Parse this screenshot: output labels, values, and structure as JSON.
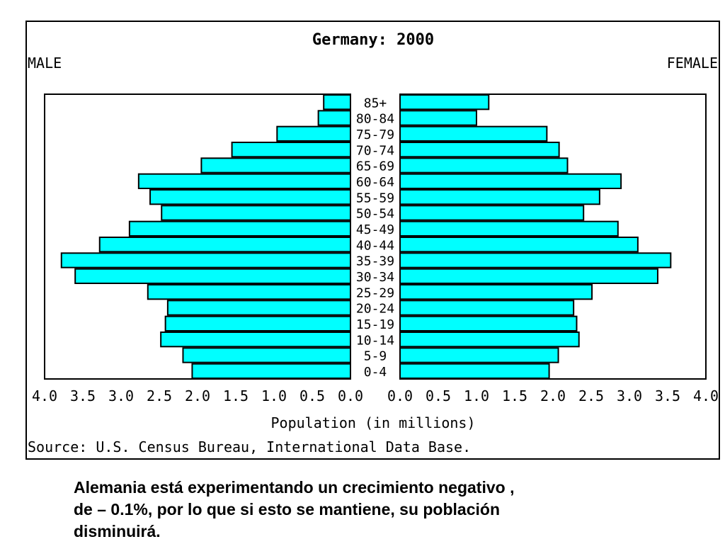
{
  "chart_data": {
    "type": "bar",
    "title": "Germany: 2000",
    "left_label": "MALE",
    "right_label": "FEMALE",
    "xlabel": "Population (in millions)",
    "source": "Source: U.S. Census Bureau, International Data Base.",
    "xlim": [
      0,
      4
    ],
    "x_ticks": [
      "0.0",
      "0.5",
      "1.0",
      "1.5",
      "2.0",
      "2.5",
      "3.0",
      "3.5",
      "4.0"
    ],
    "categories": [
      "85+",
      "80-84",
      "75-79",
      "70-74",
      "65-69",
      "60-64",
      "55-59",
      "50-54",
      "45-49",
      "40-44",
      "35-39",
      "30-34",
      "25-29",
      "20-24",
      "15-19",
      "10-14",
      "5-9",
      "0-4"
    ],
    "series": [
      {
        "name": "MALE",
        "values": [
          0.35,
          0.42,
          0.96,
          1.55,
          1.95,
          2.77,
          2.62,
          2.47,
          2.89,
          3.28,
          3.78,
          3.6,
          2.65,
          2.39,
          2.42,
          2.48,
          2.19,
          2.07
        ]
      },
      {
        "name": "FEMALE",
        "values": [
          1.16,
          1.0,
          1.92,
          2.08,
          2.19,
          2.89,
          2.61,
          2.4,
          2.85,
          3.11,
          3.54,
          3.37,
          2.51,
          2.27,
          2.31,
          2.34,
          2.07,
          1.95
        ]
      }
    ],
    "bar_color": "#00ffff",
    "grid": false
  },
  "caption": {
    "lines": [
      "Alemania está experimentando un crecimiento negativo ,",
      "de – 0.1%, por lo que si esto se mantiene, su población",
      "disminuirá."
    ]
  }
}
